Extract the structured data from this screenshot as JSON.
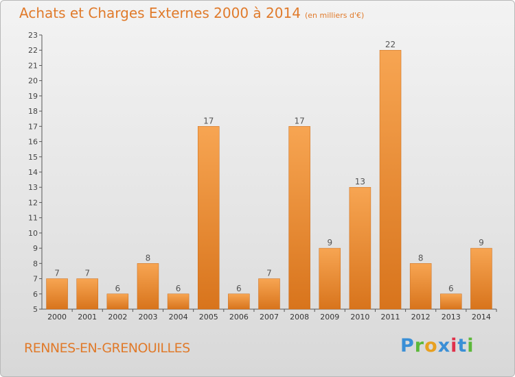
{
  "header": {
    "title": "Achats et Charges Externes 2000 à 2014",
    "unit": "(en milliers d'€)"
  },
  "footer": {
    "commune": "RENNES-EN-GRENOUILLES",
    "brand_letters": [
      "P",
      "r",
      "o",
      "x",
      "i",
      "t",
      "i"
    ],
    "brand_colors": [
      "#3a8fd6",
      "#5cb83a",
      "#e8a020",
      "#3a8fd6",
      "#e0304a",
      "#3a8fd6",
      "#5cb83a"
    ]
  },
  "chart_data": {
    "type": "bar",
    "title": "Achats et Charges Externes 2000 à 2014",
    "subtitle": "(en milliers d'€)",
    "categories": [
      "2000",
      "2001",
      "2002",
      "2003",
      "2004",
      "2005",
      "2006",
      "2007",
      "2008",
      "2009",
      "2010",
      "2011",
      "2012",
      "2013",
      "2014"
    ],
    "values": [
      7,
      7,
      6,
      8,
      6,
      17,
      6,
      7,
      17,
      9,
      13,
      22,
      8,
      6,
      9
    ],
    "ylim": [
      5,
      23
    ],
    "yticks": [
      5,
      6,
      7,
      8,
      9,
      10,
      11,
      12,
      13,
      14,
      15,
      16,
      17,
      18,
      19,
      20,
      21,
      22,
      23
    ],
    "grid": false,
    "bar_color": "#f0902e",
    "axis_color": "#555555"
  }
}
